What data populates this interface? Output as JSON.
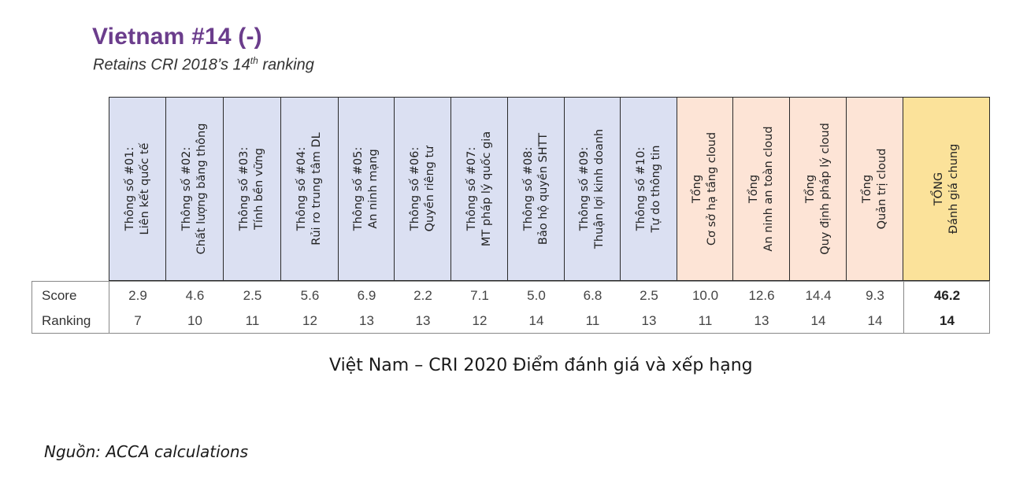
{
  "header": {
    "title": "Vietnam #14 (-)",
    "subtitle_prefix": "Retains CRI 2018’s 14",
    "subtitle_sup": "th",
    "subtitle_suffix": " ranking"
  },
  "colors": {
    "title": "#6b3d8c",
    "indicator_bg": "#dbe0f2",
    "group_total_bg": "#fde4d6",
    "overall_total_bg": "#fbe29a"
  },
  "table": {
    "row_labels": [
      "Score",
      "Ranking"
    ],
    "columns": [
      {
        "line1": "Thông số #01:",
        "line2": "Liên kết quốc tế",
        "type": "indicator",
        "score": "2.9",
        "ranking": "7"
      },
      {
        "line1": "Thông số #02:",
        "line2": "Chất lượng băng thông",
        "type": "indicator",
        "score": "4.6",
        "ranking": "10"
      },
      {
        "line1": "Thông số #03:",
        "line2": "Tính bền vững",
        "type": "indicator",
        "score": "2.5",
        "ranking": "11"
      },
      {
        "line1": "Thông số #04:",
        "line2": "Rủi ro trung tâm DL",
        "type": "indicator",
        "score": "5.6",
        "ranking": "12"
      },
      {
        "line1": "Thông số #05:",
        "line2": "An ninh mạng",
        "type": "indicator",
        "score": "6.9",
        "ranking": "13"
      },
      {
        "line1": "Thông số #06:",
        "line2": "Quyền riêng tư",
        "type": "indicator",
        "score": "2.2",
        "ranking": "13"
      },
      {
        "line1": "Thông số #07:",
        "line2": "MT pháp lý quốc gia",
        "type": "indicator",
        "score": "7.1",
        "ranking": "12"
      },
      {
        "line1": "Thông số #08:",
        "line2": "Bảo hộ quyền SHTT",
        "type": "indicator",
        "score": "5.0",
        "ranking": "14"
      },
      {
        "line1": "Thông số #09:",
        "line2": "Thuận lợi kinh doanh",
        "type": "indicator",
        "score": "6.8",
        "ranking": "11"
      },
      {
        "line1": "Thông số #10:",
        "line2": "Tự do thông tin",
        "type": "indicator",
        "score": "2.5",
        "ranking": "13"
      },
      {
        "line1": "Tổng",
        "line2": "Cơ sở hạ tầng cloud",
        "type": "group",
        "score": "10.0",
        "ranking": "11"
      },
      {
        "line1": "Tổng",
        "line2": "An ninh an toàn cloud",
        "type": "group",
        "score": "12.6",
        "ranking": "13"
      },
      {
        "line1": "Tổng",
        "line2": "Quy định pháp lý cloud",
        "type": "group",
        "score": "14.4",
        "ranking": "14"
      },
      {
        "line1": "Tổng",
        "line2": "Quản trị cloud",
        "type": "group",
        "score": "9.3",
        "ranking": "14"
      },
      {
        "line1": "TỔNG",
        "line2": "Đánh giá chung",
        "type": "overall",
        "score": "46.2",
        "ranking": "14"
      }
    ]
  },
  "caption": "Việt Nam – CRI 2020 Điểm đánh giá và xếp hạng",
  "source": "Nguồn: ACCA calculations"
}
